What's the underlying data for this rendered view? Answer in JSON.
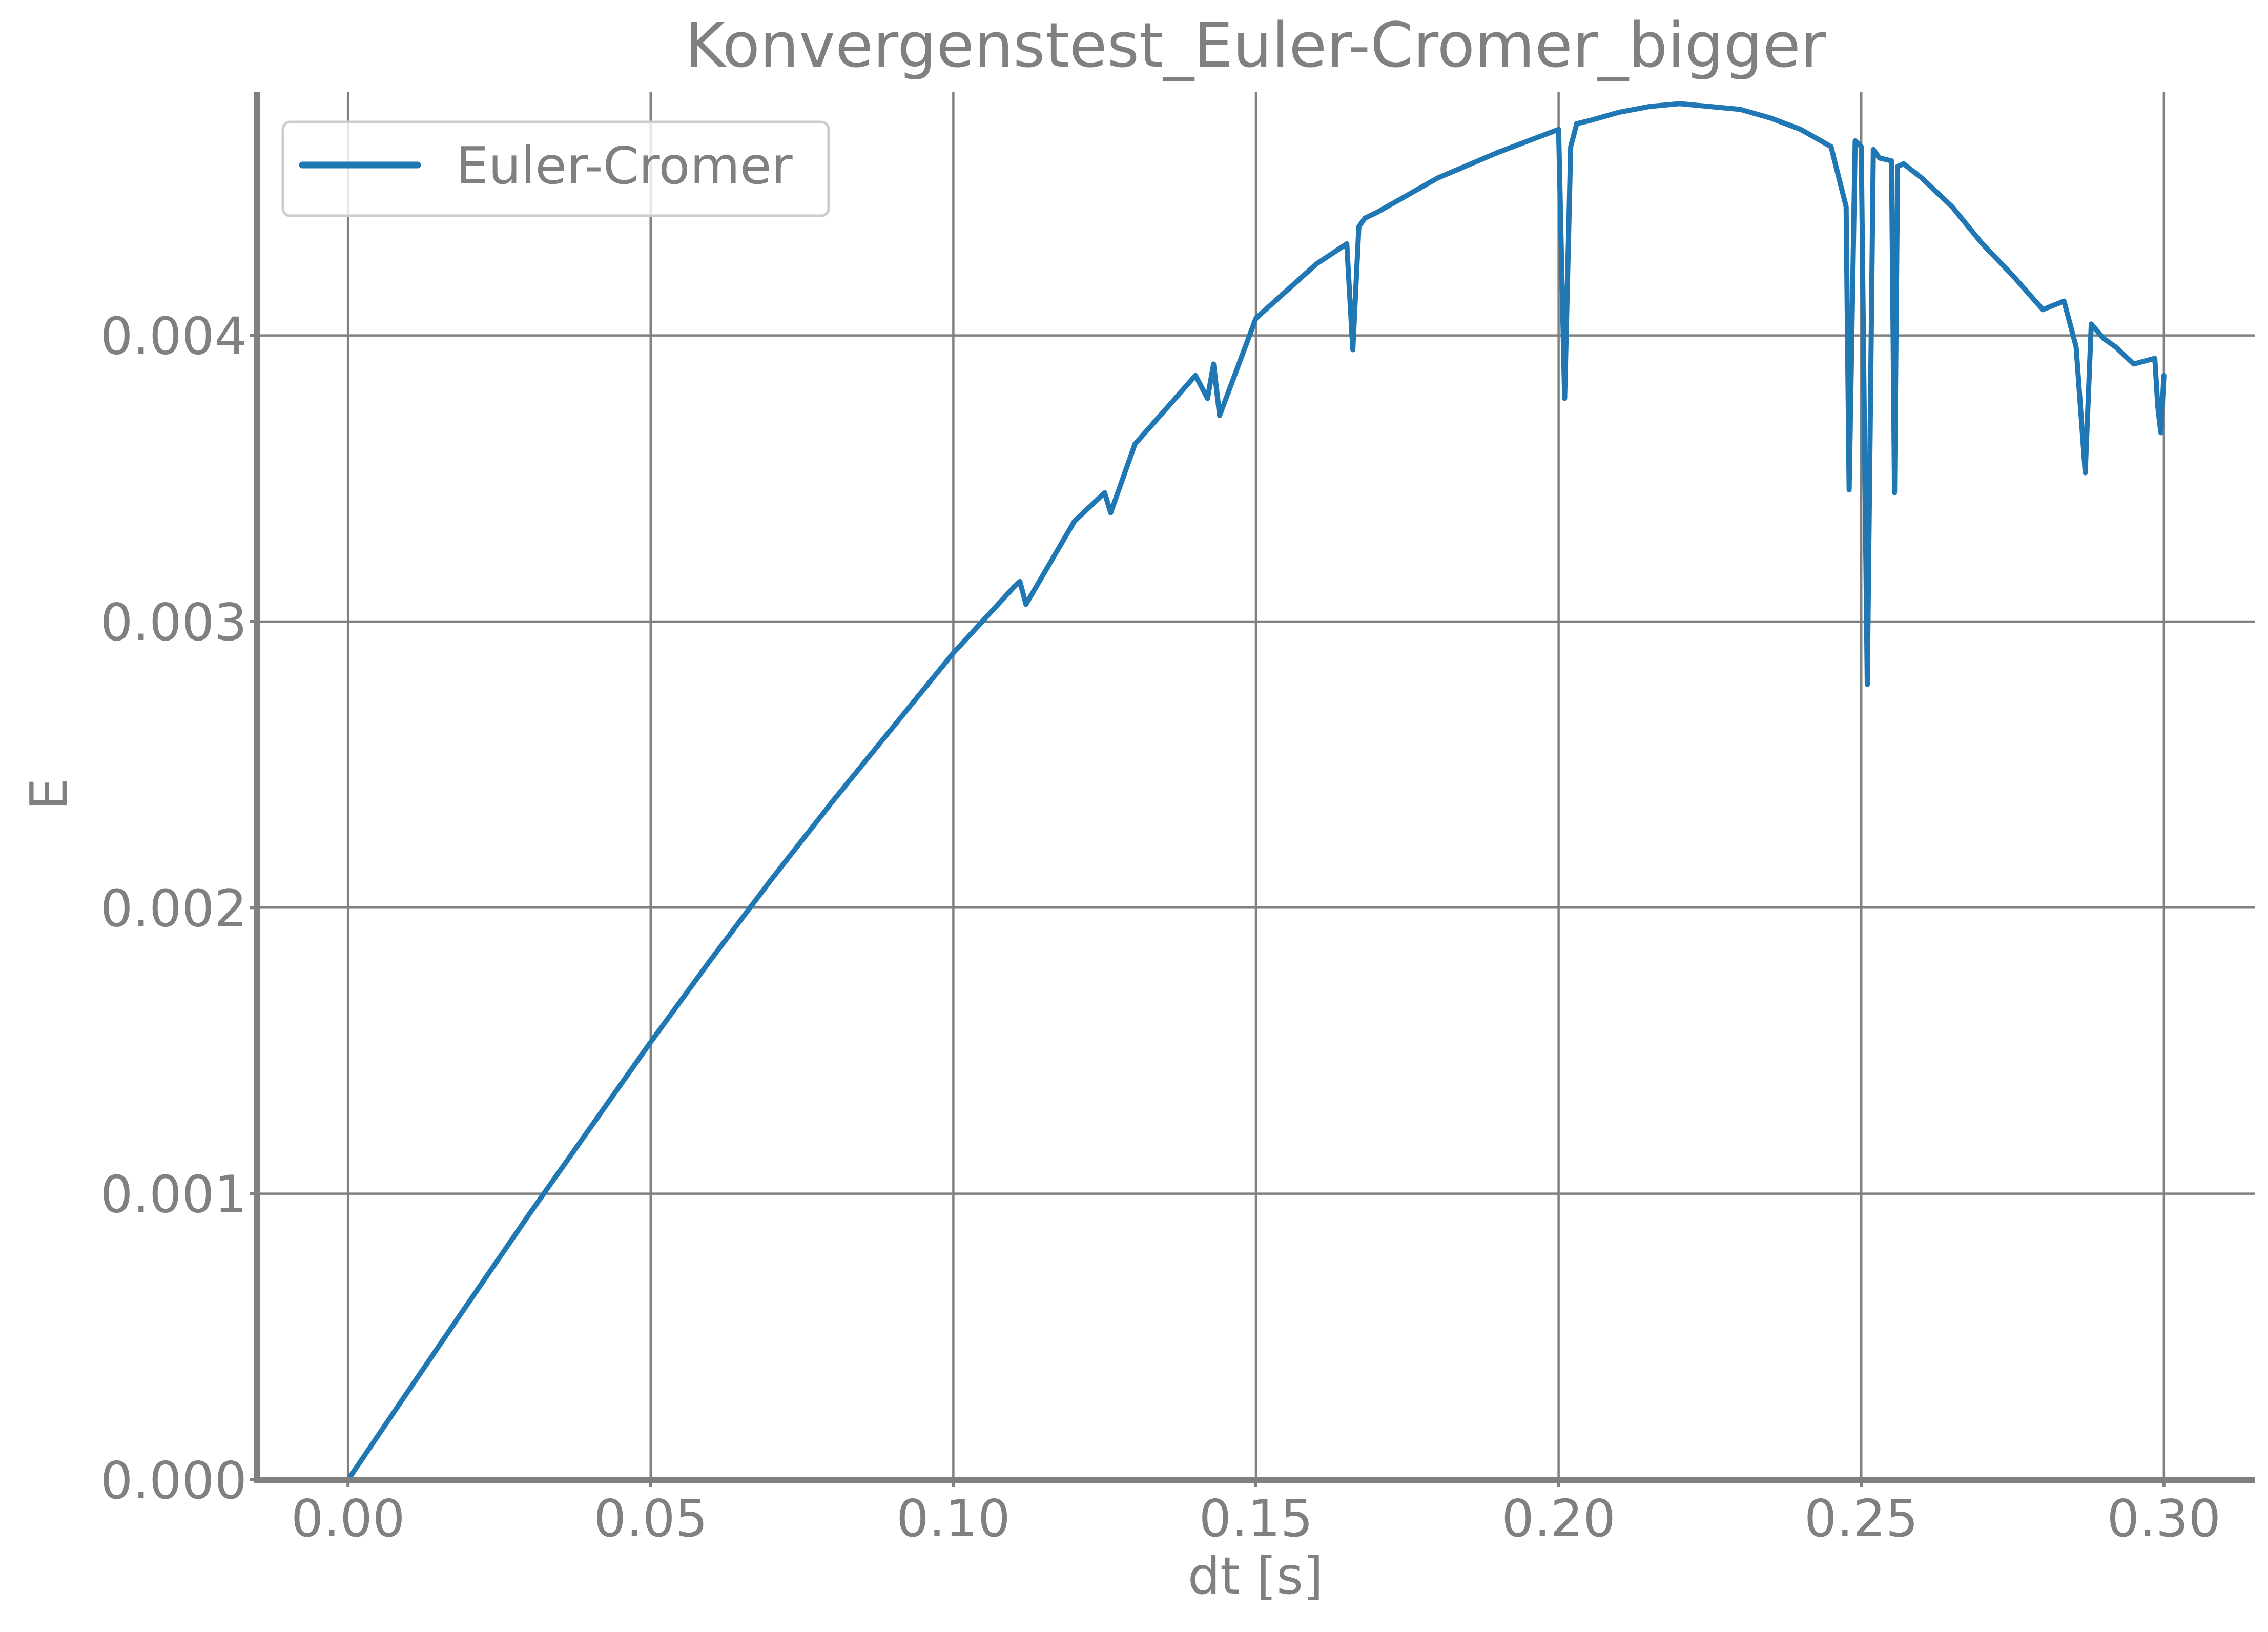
{
  "chart_data": {
    "type": "line",
    "title": "Konvergenstest_Euler-Cromer_bigger",
    "xlabel": "dt [s]",
    "ylabel": "E",
    "xlim": [
      -0.015,
      0.315
    ],
    "ylim": [
      0.0,
      0.00485
    ],
    "xticks": [
      0.0,
      0.05,
      0.1,
      0.15,
      0.2,
      0.25,
      0.3
    ],
    "xtick_labels": [
      "0.00",
      "0.05",
      "0.10",
      "0.15",
      "0.20",
      "0.25",
      "0.30"
    ],
    "yticks": [
      0.0,
      0.001,
      0.002,
      0.003,
      0.004
    ],
    "ytick_labels": [
      "0.000",
      "0.001",
      "0.002",
      "0.003",
      "0.004"
    ],
    "grid": true,
    "legend_position": "upper-left",
    "series": [
      {
        "name": "Euler-Cromer",
        "color": "#1f77b4",
        "x": [
          0.0,
          0.01,
          0.02,
          0.03,
          0.04,
          0.05,
          0.06,
          0.07,
          0.08,
          0.09,
          0.1,
          0.11,
          0.111,
          0.112,
          0.12,
          0.125,
          0.126,
          0.13,
          0.14,
          0.142,
          0.143,
          0.144,
          0.15,
          0.16,
          0.165,
          0.166,
          0.167,
          0.168,
          0.17,
          0.18,
          0.19,
          0.195,
          0.2,
          0.2005,
          0.201,
          0.202,
          0.203,
          0.205,
          0.21,
          0.215,
          0.22,
          0.225,
          0.23,
          0.235,
          0.24,
          0.245,
          0.2475,
          0.248,
          0.249,
          0.25,
          0.251,
          0.252,
          0.253,
          0.255,
          0.2555,
          0.256,
          0.257,
          0.26,
          0.265,
          0.27,
          0.275,
          0.28,
          0.2835,
          0.2855,
          0.287,
          0.288,
          0.29,
          0.292,
          0.295,
          0.2985,
          0.299,
          0.2995,
          0.3
        ],
        "y": [
          0.0,
          0.000312,
          0.000622,
          0.00093,
          0.00123,
          0.00153,
          0.00182,
          0.0021,
          0.00237,
          0.00263,
          0.00289,
          0.00312,
          0.00314,
          0.00306,
          0.00335,
          0.00345,
          0.00338,
          0.00362,
          0.00386,
          0.00378,
          0.0039,
          0.00372,
          0.00406,
          0.00425,
          0.00432,
          0.00395,
          0.00438,
          0.00441,
          0.00443,
          0.00455,
          0.00464,
          0.00468,
          0.00472,
          0.00425,
          0.00378,
          0.00466,
          0.00474,
          0.00475,
          0.00478,
          0.0048,
          0.00481,
          0.0048,
          0.00479,
          0.00476,
          0.00472,
          0.00466,
          0.00445,
          0.00346,
          0.00468,
          0.00466,
          0.00278,
          0.00465,
          0.00462,
          0.00461,
          0.00345,
          0.00459,
          0.0046,
          0.00455,
          0.00445,
          0.00432,
          0.00421,
          0.00409,
          0.00412,
          0.00396,
          0.00352,
          0.00404,
          0.00399,
          0.00396,
          0.0039,
          0.00392,
          0.00375,
          0.00366,
          0.00386
        ]
      }
    ]
  }
}
